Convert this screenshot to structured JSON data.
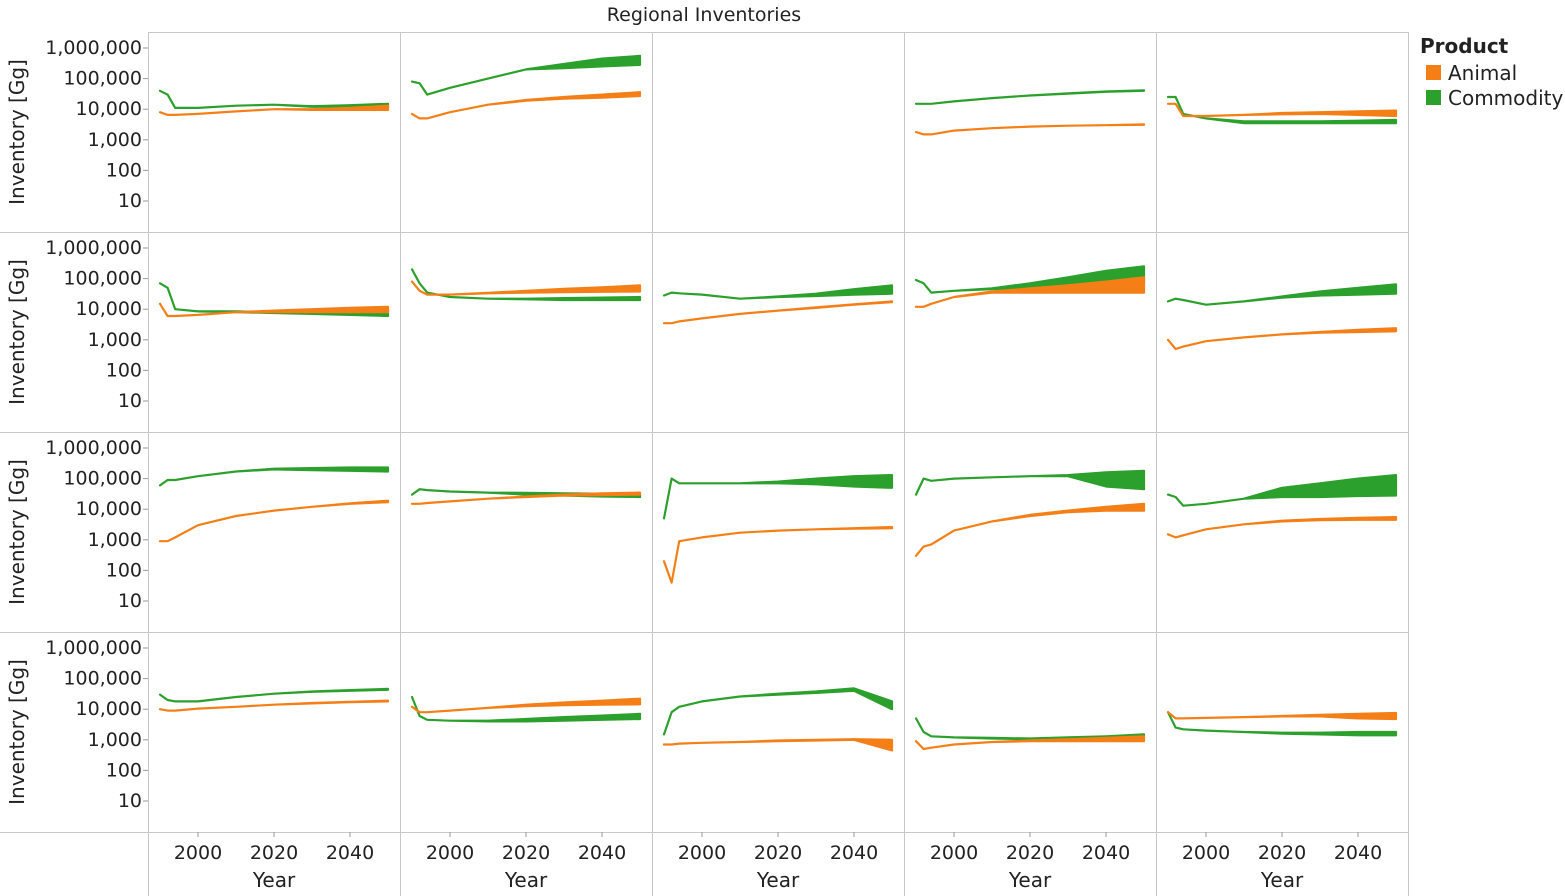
{
  "chart_data": {
    "type": "line",
    "title": "Regional Inventories",
    "xlabel": "Year",
    "ylabel": "Inventory [Gg]",
    "yscale": "log",
    "ylim": [
      10,
      1000000
    ],
    "ytick_labels": [
      "1,000,000",
      "100,000",
      "10,000",
      "1,000",
      "100",
      "10"
    ],
    "xlim": [
      1990,
      2050
    ],
    "xtick_labels": [
      "2000",
      "2020",
      "2040"
    ],
    "grid": "panel borders only",
    "legend": {
      "title": "Product",
      "placement": "right",
      "items": [
        {
          "name": "Animal",
          "color": "#f57f17"
        },
        {
          "name": "Commodity",
          "color": "#2ca02c"
        }
      ]
    },
    "layout": {
      "rows": 4,
      "cols": 5
    },
    "x": [
      1990,
      1992,
      1994,
      2000,
      2010,
      2020,
      2030,
      2040,
      2050
    ],
    "panels": [
      {
        "row": 0,
        "col": 0,
        "commodity": {
          "low": [
            40000,
            30000,
            11000,
            11000,
            13000,
            14000,
            12000,
            12000,
            12000
          ],
          "high": [
            40000,
            30000,
            11000,
            11000,
            13000,
            14000,
            12500,
            13500,
            15000
          ]
        },
        "animal": {
          "low": [
            8000,
            6500,
            6500,
            7000,
            8500,
            10000,
            9500,
            9500,
            9500
          ],
          "high": [
            8000,
            6500,
            6500,
            7000,
            8500,
            10000,
            10000,
            11000,
            13000
          ]
        }
      },
      {
        "row": 0,
        "col": 1,
        "commodity": {
          "low": [
            80000,
            70000,
            30000,
            50000,
            100000,
            200000,
            220000,
            250000,
            280000
          ],
          "high": [
            80000,
            70000,
            30000,
            50000,
            100000,
            200000,
            300000,
            450000,
            550000
          ]
        },
        "animal": {
          "low": [
            7000,
            5000,
            5000,
            8000,
            14000,
            19000,
            22000,
            24000,
            27000
          ],
          "high": [
            7000,
            5000,
            5000,
            8000,
            14000,
            20000,
            25000,
            30000,
            36000
          ]
        }
      },
      {
        "row": 0,
        "col": 2,
        "empty": true
      },
      {
        "row": 0,
        "col": 3,
        "commodity": {
          "low": [
            15000,
            15000,
            15000,
            18000,
            23000,
            28000,
            32000,
            37000,
            40000
          ],
          "high": [
            15000,
            15000,
            15000,
            18000,
            23000,
            28000,
            33000,
            38000,
            41000
          ]
        },
        "animal": {
          "low": [
            1800,
            1500,
            1500,
            2000,
            2400,
            2700,
            2900,
            3000,
            3100
          ],
          "high": [
            1800,
            1500,
            1500,
            2000,
            2400,
            2700,
            2900,
            3000,
            3200
          ]
        }
      },
      {
        "row": 0,
        "col": 4,
        "commodity": {
          "low": [
            25000,
            25000,
            7000,
            5000,
            3500,
            3500,
            3500,
            3500,
            3500
          ],
          "high": [
            25000,
            25000,
            7000,
            5000,
            4000,
            4000,
            4000,
            4200,
            4500
          ]
        },
        "animal": {
          "low": [
            15000,
            15000,
            6000,
            6000,
            6500,
            6800,
            7000,
            6500,
            6000
          ],
          "high": [
            15000,
            15000,
            6000,
            6000,
            6500,
            7500,
            8000,
            8500,
            9000
          ]
        }
      },
      {
        "row": 1,
        "col": 0,
        "commodity": {
          "low": [
            70000,
            50000,
            10000,
            8500,
            8000,
            7500,
            7000,
            6500,
            6000
          ],
          "high": [
            70000,
            50000,
            10000,
            8500,
            8500,
            8000,
            8000,
            9000,
            10000
          ]
        },
        "animal": {
          "low": [
            15000,
            6000,
            6000,
            6500,
            8000,
            8000,
            8000,
            8000,
            8000
          ],
          "high": [
            15000,
            6000,
            6000,
            6500,
            8000,
            9000,
            10000,
            11000,
            12000
          ]
        }
      },
      {
        "row": 1,
        "col": 1,
        "commodity": {
          "low": [
            200000,
            70000,
            35000,
            25000,
            22000,
            21000,
            20000,
            20000,
            20000
          ],
          "high": [
            200000,
            70000,
            35000,
            25000,
            22000,
            22000,
            23000,
            24000,
            25000
          ]
        },
        "animal": {
          "low": [
            80000,
            40000,
            30000,
            30000,
            33000,
            35000,
            36000,
            37000,
            38000
          ],
          "high": [
            80000,
            40000,
            30000,
            30000,
            34000,
            40000,
            46000,
            52000,
            60000
          ]
        }
      },
      {
        "row": 1,
        "col": 2,
        "commodity": {
          "low": [
            28000,
            35000,
            33000,
            30000,
            22000,
            25000,
            27000,
            30000,
            32000
          ],
          "high": [
            28000,
            35000,
            33000,
            30000,
            22000,
            26000,
            32000,
            45000,
            60000
          ]
        },
        "animal": {
          "low": [
            3500,
            3500,
            4000,
            5000,
            7000,
            9000,
            11000,
            14000,
            17000
          ],
          "high": [
            3500,
            3500,
            4000,
            5000,
            7000,
            9000,
            11500,
            14500,
            18000
          ]
        }
      },
      {
        "row": 1,
        "col": 3,
        "commodity": {
          "low": [
            90000,
            70000,
            35000,
            40000,
            45000,
            50000,
            55000,
            60000,
            70000
          ],
          "high": [
            90000,
            70000,
            35000,
            40000,
            48000,
            70000,
            110000,
            180000,
            250000
          ]
        },
        "animal": {
          "low": [
            12000,
            12000,
            15000,
            25000,
            35000,
            35000,
            35000,
            35000,
            35000
          ],
          "high": [
            12000,
            12000,
            15000,
            25000,
            38000,
            48000,
            60000,
            80000,
            110000
          ]
        }
      },
      {
        "row": 1,
        "col": 4,
        "commodity": {
          "low": [
            18000,
            22000,
            20000,
            14000,
            18000,
            24000,
            28000,
            30000,
            32000
          ],
          "high": [
            18000,
            22000,
            20000,
            14000,
            18000,
            26000,
            38000,
            50000,
            65000
          ]
        },
        "animal": {
          "low": [
            1000,
            500,
            600,
            900,
            1200,
            1500,
            1700,
            1800,
            1900
          ],
          "high": [
            1000,
            500,
            600,
            900,
            1200,
            1500,
            1800,
            2100,
            2400
          ]
        }
      },
      {
        "row": 2,
        "col": 0,
        "commodity": {
          "low": [
            60000,
            90000,
            90000,
            120000,
            170000,
            200000,
            190000,
            180000,
            170000
          ],
          "high": [
            60000,
            90000,
            90000,
            120000,
            170000,
            210000,
            220000,
            230000,
            230000
          ]
        },
        "animal": {
          "low": [
            900,
            900,
            1200,
            3000,
            6000,
            9000,
            12000,
            15000,
            17000
          ],
          "high": [
            900,
            900,
            1200,
            3000,
            6000,
            9000,
            12000,
            15500,
            19000
          ]
        }
      },
      {
        "row": 2,
        "col": 1,
        "commodity": {
          "low": [
            30000,
            45000,
            42000,
            38000,
            35000,
            30000,
            28000,
            26000,
            25000
          ],
          "high": [
            30000,
            45000,
            42000,
            38000,
            35000,
            34000,
            33000,
            32000,
            31000
          ]
        },
        "animal": {
          "low": [
            15000,
            15000,
            16000,
            18000,
            22000,
            25000,
            28000,
            29000,
            30000
          ],
          "high": [
            15000,
            15000,
            16000,
            18000,
            22000,
            26000,
            30000,
            33000,
            35000
          ]
        }
      },
      {
        "row": 2,
        "col": 2,
        "commodity": {
          "low": [
            5000,
            100000,
            70000,
            70000,
            70000,
            70000,
            65000,
            55000,
            50000
          ],
          "high": [
            5000,
            100000,
            70000,
            70000,
            70000,
            80000,
            100000,
            120000,
            130000
          ]
        },
        "animal": {
          "low": [
            200,
            40,
            900,
            1200,
            1700,
            2000,
            2200,
            2300,
            2400
          ],
          "high": [
            200,
            40,
            900,
            1200,
            1700,
            2000,
            2200,
            2400,
            2600
          ]
        }
      },
      {
        "row": 2,
        "col": 3,
        "commodity": {
          "low": [
            30000,
            100000,
            85000,
            100000,
            110000,
            120000,
            120000,
            55000,
            45000
          ],
          "high": [
            30000,
            100000,
            85000,
            100000,
            110000,
            120000,
            130000,
            160000,
            180000
          ]
        },
        "animal": {
          "low": [
            300,
            600,
            700,
            2000,
            4000,
            6000,
            8000,
            9000,
            9000
          ],
          "high": [
            300,
            600,
            700,
            2000,
            4000,
            6500,
            9000,
            12000,
            15000
          ]
        }
      },
      {
        "row": 2,
        "col": 4,
        "commodity": {
          "low": [
            30000,
            25000,
            13000,
            15000,
            22000,
            25000,
            25000,
            27000,
            28000
          ],
          "high": [
            30000,
            25000,
            13000,
            15000,
            22000,
            50000,
            70000,
            100000,
            130000
          ]
        },
        "animal": {
          "low": [
            1500,
            1200,
            1400,
            2200,
            3200,
            4000,
            4400,
            4500,
            4500
          ],
          "high": [
            1500,
            1200,
            1400,
            2200,
            3200,
            4200,
            4800,
            5200,
            5500
          ]
        }
      },
      {
        "row": 3,
        "col": 0,
        "commodity": {
          "low": [
            30000,
            20000,
            18000,
            18000,
            25000,
            32000,
            37000,
            40000,
            43000
          ],
          "high": [
            30000,
            20000,
            18000,
            18000,
            25000,
            32000,
            38000,
            42000,
            46000
          ]
        },
        "animal": {
          "low": [
            10000,
            9000,
            9000,
            10500,
            12000,
            14000,
            15500,
            17000,
            18000
          ],
          "high": [
            10000,
            9000,
            9000,
            10500,
            12000,
            14000,
            16000,
            17500,
            19000
          ]
        }
      },
      {
        "row": 3,
        "col": 1,
        "commodity": {
          "low": [
            25000,
            6000,
            4500,
            4200,
            4000,
            4000,
            4200,
            4500,
            4800
          ],
          "high": [
            25000,
            6000,
            4500,
            4200,
            4200,
            4800,
            5500,
            6200,
            7000
          ]
        },
        "animal": {
          "low": [
            12000,
            8000,
            8000,
            9000,
            11000,
            12500,
            13500,
            14000,
            14500
          ],
          "high": [
            12000,
            8000,
            8000,
            9000,
            11000,
            14000,
            16500,
            19000,
            22000
          ]
        }
      },
      {
        "row": 3,
        "col": 2,
        "commodity": {
          "low": [
            1500,
            8000,
            12000,
            18000,
            26000,
            30000,
            34000,
            40000,
            10000
          ],
          "high": [
            1500,
            8000,
            12000,
            18000,
            26000,
            32000,
            38000,
            48000,
            18000
          ]
        },
        "animal": {
          "low": [
            700,
            700,
            750,
            800,
            850,
            900,
            950,
            1000,
            450
          ],
          "high": [
            700,
            700,
            750,
            800,
            850,
            950,
            1000,
            1050,
            1000
          ]
        }
      },
      {
        "row": 3,
        "col": 3,
        "commodity": {
          "low": [
            5000,
            1800,
            1300,
            1200,
            1100,
            1050,
            1100,
            1200,
            1300
          ],
          "high": [
            5000,
            1800,
            1300,
            1200,
            1150,
            1100,
            1200,
            1300,
            1500
          ]
        },
        "animal": {
          "low": [
            900,
            500,
            550,
            700,
            850,
            900,
            900,
            900,
            900
          ],
          "high": [
            900,
            500,
            550,
            700,
            850,
            950,
            1050,
            1150,
            1300
          ]
        }
      },
      {
        "row": 3,
        "col": 4,
        "commodity": {
          "low": [
            8000,
            2500,
            2200,
            2000,
            1800,
            1600,
            1500,
            1400,
            1400
          ],
          "high": [
            8000,
            2500,
            2200,
            2000,
            1800,
            1700,
            1700,
            1800,
            1800
          ]
        },
        "animal": {
          "low": [
            8000,
            5000,
            5000,
            5200,
            5500,
            5800,
            5800,
            5000,
            4800
          ],
          "high": [
            8000,
            5000,
            5000,
            5200,
            5500,
            6000,
            6500,
            7000,
            7500
          ]
        }
      }
    ]
  }
}
